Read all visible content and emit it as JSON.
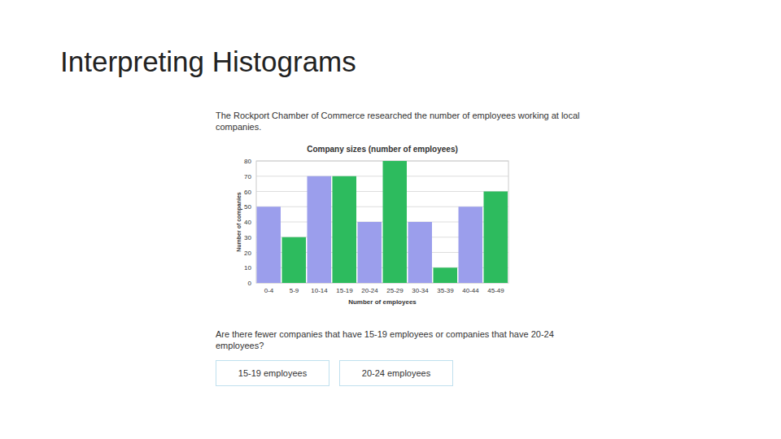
{
  "slide_title": "Interpreting Histograms",
  "intro": "The Rockport Chamber of Commerce researched the number of employees working at local companies.",
  "chart_data": {
    "type": "bar",
    "title": "Company sizes (number of employees)",
    "x_label": "Number of employees",
    "y_label": "Number of companies",
    "categories": [
      "0-4",
      "5-9",
      "10-14",
      "15-19",
      "20-24",
      "25-29",
      "30-34",
      "35-39",
      "40-44",
      "45-49"
    ],
    "values": [
      50,
      30,
      70,
      70,
      40,
      80,
      40,
      10,
      50,
      60
    ],
    "colors": [
      "#9b9eec",
      "#2dbb5e",
      "#9b9eec",
      "#2dbb5e",
      "#9b9eec",
      "#2dbb5e",
      "#9b9eec",
      "#2dbb5e",
      "#9b9eec",
      "#2dbb5e"
    ],
    "ylim": [
      0,
      80
    ],
    "yticks": [
      0,
      10,
      20,
      30,
      40,
      50,
      60,
      70,
      80
    ],
    "grid": true
  },
  "question": "Are there fewer companies that have 15-19 employees or companies that have 20-24 employees?",
  "choices": [
    "15-19 employees",
    "20-24 employees"
  ]
}
